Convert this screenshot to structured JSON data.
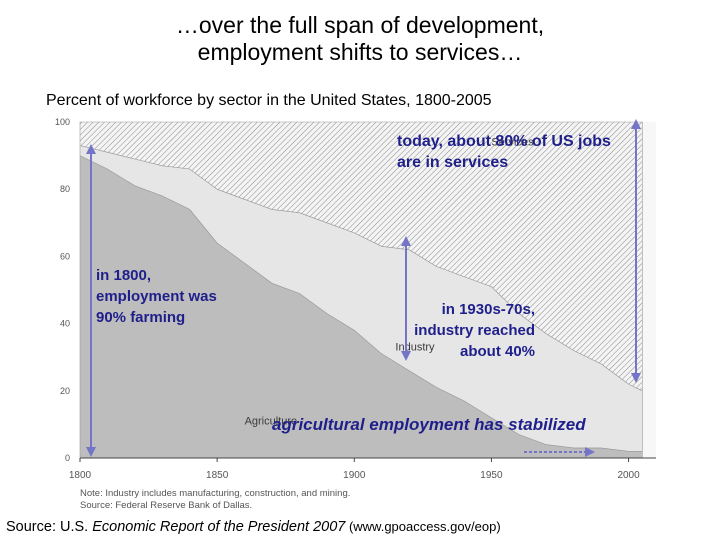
{
  "slide": {
    "title_line1": "…over the full span of development,",
    "title_line2": "employment shifts to services…",
    "subtitle": "Percent of workforce by sector in the United States, 1800-2005",
    "source_prefix": "Source:  U.S. ",
    "source_title": "Economic Report of the President 2007",
    "source_suffix": " (www.gpoaccess.gov/eop)"
  },
  "callouts": {
    "services": "today, about 80% of US jobs are in services",
    "farming": "in 1800, employment was 90% farming",
    "industry": "in 1930s-70s, industry reached about 40%",
    "agriculture": "agricultural employment has stabilized"
  },
  "colors": {
    "agriculture_fill": "#bdbdbd",
    "industry_fill": "#e6e6e6",
    "hatch_line": "#8a8a8a",
    "arrow": "#7575c8",
    "axis_text": "#555555"
  },
  "chart_data": {
    "type": "area",
    "stacked": true,
    "x": [
      1800,
      1810,
      1820,
      1830,
      1840,
      1850,
      1860,
      1870,
      1880,
      1890,
      1900,
      1910,
      1920,
      1930,
      1940,
      1950,
      1960,
      1970,
      1980,
      1990,
      2000,
      2005
    ],
    "series": [
      {
        "name": "Agriculture",
        "values": [
          90,
          86,
          81,
          78,
          74,
          64,
          58,
          52,
          49,
          43,
          38,
          31,
          26,
          21,
          17,
          12,
          7,
          4,
          3,
          3,
          2,
          2
        ]
      },
      {
        "name": "Industry",
        "values": [
          3,
          5,
          8,
          9,
          12,
          16,
          19,
          22,
          24,
          27,
          29,
          32,
          36,
          36,
          37,
          39,
          36,
          33,
          29,
          25,
          20,
          18
        ]
      },
      {
        "name": "Services",
        "values": [
          7,
          9,
          11,
          13,
          14,
          20,
          23,
          26,
          27,
          30,
          33,
          37,
          38,
          43,
          46,
          49,
          57,
          63,
          68,
          72,
          78,
          80
        ]
      }
    ],
    "xlim": [
      1800,
      2010
    ],
    "ylim": [
      0,
      100
    ],
    "xticks": [
      1800,
      1850,
      1900,
      1950,
      2000
    ],
    "yticks": [
      0,
      20,
      40,
      60,
      80,
      100
    ],
    "area_labels": [
      "Services",
      "Industry",
      "Agriculture"
    ],
    "note_line1": "Note: Industry includes manufacturing, construction, and mining.",
    "note_line2": "Source: Federal Reserve Bank of Dallas."
  }
}
